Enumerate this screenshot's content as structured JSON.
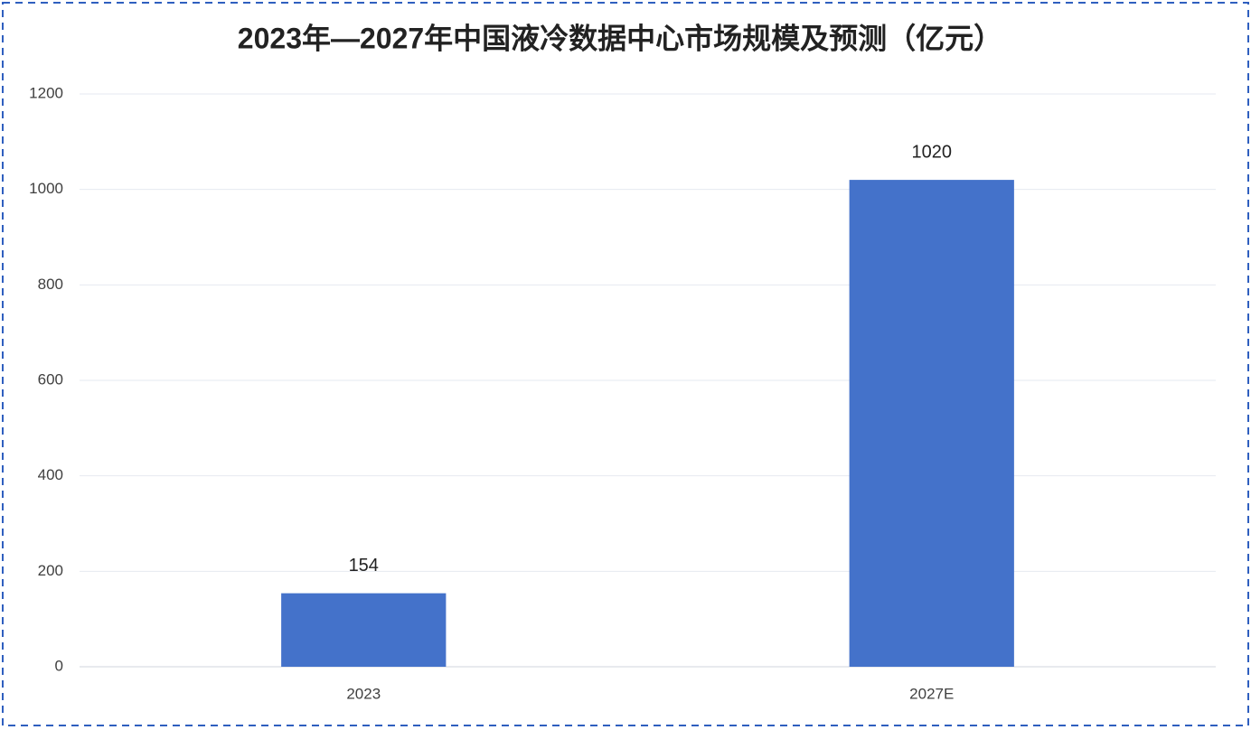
{
  "chart_data": {
    "type": "bar",
    "title": "2023年—2027年中国液冷数据中心市场规模及预测（亿元）",
    "categories": [
      "2023",
      "2027E"
    ],
    "values": [
      154,
      1020
    ],
    "color": "#4472ca",
    "ylim": [
      0,
      1200
    ],
    "yticks": [
      0,
      200,
      400,
      600,
      800,
      1000,
      1200
    ],
    "grid": true
  }
}
